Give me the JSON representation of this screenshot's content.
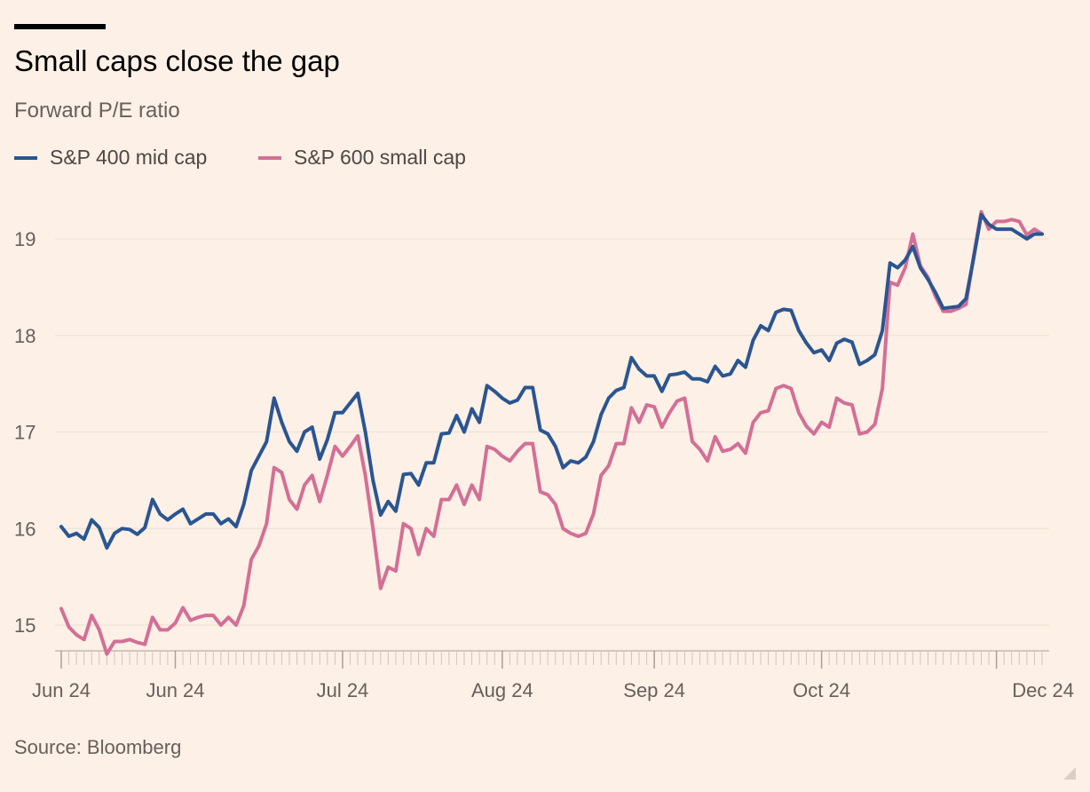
{
  "header": {
    "title": "Small caps close the gap",
    "subtitle": "Forward P/E ratio"
  },
  "source": "Source: Bloomberg",
  "colors": {
    "background": "#fdf0e6",
    "mid_cap": "#2a5592",
    "small_cap": "#d36f96",
    "grid": "#ebdfd4",
    "axis": "#a8a09a",
    "tick_label": "#66605c"
  },
  "chart_data": {
    "type": "line",
    "ylim": [
      14.7,
      19.35
    ],
    "yticks": [
      15,
      16,
      17,
      18,
      19
    ],
    "grid": "horizontal",
    "legend_position": "top-left",
    "x_tick_labels": [
      "Jun 24",
      "Jun 24",
      "Jul 24",
      "Aug 24",
      "Sep 24",
      "Oct 24",
      "Dec 24"
    ],
    "x_tick_label_index": [
      0,
      15,
      37,
      58,
      78,
      100,
      123
    ],
    "series": [
      {
        "name": "S&P 400 mid cap",
        "color": "#2a5592",
        "values": [
          16.02,
          15.92,
          15.95,
          15.89,
          16.09,
          16.01,
          15.8,
          15.95,
          16.0,
          15.99,
          15.94,
          16.01,
          16.3,
          16.15,
          16.09,
          16.15,
          16.2,
          16.05,
          16.1,
          16.15,
          16.15,
          16.05,
          16.1,
          16.02,
          16.25,
          16.6,
          16.75,
          16.9,
          17.35,
          17.1,
          16.9,
          16.8,
          17.0,
          17.05,
          16.72,
          16.92,
          17.2,
          17.2,
          17.3,
          17.4,
          17.0,
          16.5,
          16.14,
          16.28,
          16.18,
          16.56,
          16.57,
          16.45,
          16.68,
          16.68,
          16.98,
          16.99,
          17.17,
          17.0,
          17.24,
          17.1,
          17.48,
          17.42,
          17.35,
          17.3,
          17.33,
          17.46,
          17.46,
          17.02,
          16.98,
          16.85,
          16.63,
          16.7,
          16.68,
          16.74,
          16.9,
          17.18,
          17.35,
          17.43,
          17.46,
          17.77,
          17.65,
          17.58,
          17.58,
          17.42,
          17.59,
          17.6,
          17.62,
          17.55,
          17.55,
          17.52,
          17.68,
          17.58,
          17.6,
          17.74,
          17.67,
          17.95,
          18.1,
          18.05,
          18.24,
          18.27,
          18.26,
          18.05,
          17.92,
          17.82,
          17.85,
          17.74,
          17.92,
          17.96,
          17.93,
          17.7,
          17.74,
          17.8,
          18.05,
          18.75,
          18.7,
          18.78,
          18.92,
          18.7,
          18.58,
          18.44,
          18.28,
          18.29,
          18.3,
          18.38,
          18.8,
          19.25,
          19.15,
          19.1,
          19.1,
          19.1,
          19.05,
          19.0,
          19.05,
          19.05
        ]
      },
      {
        "name": "S&P 600 small cap",
        "color": "#d36f96",
        "values": [
          15.17,
          14.98,
          14.9,
          14.85,
          15.1,
          14.95,
          14.7,
          14.83,
          14.83,
          14.85,
          14.82,
          14.8,
          15.08,
          14.95,
          14.95,
          15.02,
          15.18,
          15.05,
          15.08,
          15.1,
          15.1,
          15.0,
          15.08,
          15.0,
          15.2,
          15.68,
          15.82,
          16.05,
          16.63,
          16.58,
          16.3,
          16.2,
          16.45,
          16.55,
          16.28,
          16.55,
          16.85,
          16.75,
          16.85,
          16.96,
          16.55,
          16.0,
          15.38,
          15.6,
          15.56,
          16.05,
          16.0,
          15.73,
          16.0,
          15.92,
          16.3,
          16.3,
          16.45,
          16.25,
          16.45,
          16.3,
          16.85,
          16.82,
          16.75,
          16.7,
          16.8,
          16.88,
          16.88,
          16.38,
          16.35,
          16.25,
          16.0,
          15.95,
          15.92,
          15.95,
          16.15,
          16.55,
          16.65,
          16.88,
          16.88,
          17.25,
          17.1,
          17.28,
          17.26,
          17.05,
          17.2,
          17.32,
          17.35,
          16.9,
          16.82,
          16.7,
          16.95,
          16.8,
          16.82,
          16.88,
          16.78,
          17.1,
          17.2,
          17.22,
          17.45,
          17.48,
          17.45,
          17.2,
          17.06,
          16.98,
          17.1,
          17.05,
          17.35,
          17.3,
          17.28,
          16.98,
          17.0,
          17.08,
          17.45,
          18.55,
          18.52,
          18.7,
          19.05,
          18.72,
          18.6,
          18.4,
          18.25,
          18.25,
          18.28,
          18.32,
          18.82,
          19.28,
          19.1,
          19.18,
          19.18,
          19.2,
          19.18,
          19.04,
          19.1,
          19.05
        ]
      }
    ]
  }
}
